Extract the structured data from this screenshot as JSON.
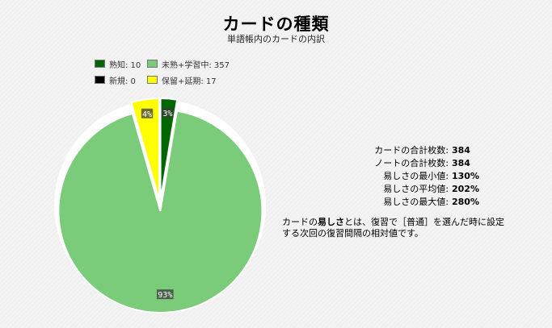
{
  "header": {
    "title": "カードの種類",
    "subtitle": "単語帳内のカードの内訳"
  },
  "chart_data": {
    "type": "pie",
    "title": "カードの種類",
    "subtitle": "単語帳内のカードの内訳",
    "legend_placement": "top-left",
    "slices": [
      {
        "label": "熟知",
        "value": 10,
        "percent_label": "3%",
        "color": "#006600"
      },
      {
        "label": "未熟+学習中",
        "value": 357,
        "percent_label": "93%",
        "color": "#7acc7a"
      },
      {
        "label": "新規",
        "value": 0,
        "percent_label": "",
        "color": "#000000"
      },
      {
        "label": "保留+延期",
        "value": 17,
        "percent_label": "4%",
        "color": "#ffff00"
      }
    ],
    "legend": [
      {
        "text": "熟知: 10",
        "color": "#006600"
      },
      {
        "text": "未熟+学習中: 357",
        "color": "#7acc7a"
      },
      {
        "text": "新規: 0",
        "color": "#000000"
      },
      {
        "text": "保留+延期: 17",
        "color": "#ffff00"
      }
    ]
  },
  "stats": [
    {
      "label": "カードの合計枚数:",
      "value": "384"
    },
    {
      "label": "ノートの合計枚数:",
      "value": "384"
    },
    {
      "label": "易しさの最小値:",
      "value": "130%"
    },
    {
      "label": "易しさの平均値:",
      "value": "202%"
    },
    {
      "label": "易しさの最大値:",
      "value": "280%"
    }
  ],
  "note": {
    "part1": "カードの",
    "bold": "易しさ",
    "part2": "とは、復習で［普通］を選んだ時に設定する次回の復習間隔の相対値です。"
  }
}
